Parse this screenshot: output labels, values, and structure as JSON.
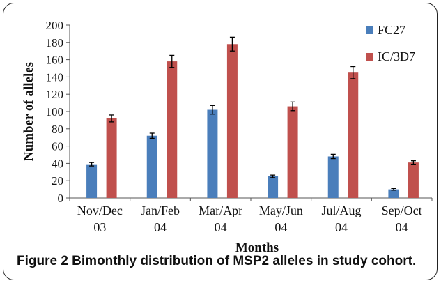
{
  "caption": "Figure 2 Bimonthly distribution of MSP2 alleles in study cohort.",
  "colors": {
    "FC27": "#4a7ebb",
    "IC/3D7": "#c0504d"
  },
  "chart_data": {
    "type": "bar",
    "categories": [
      [
        "Nov/Dec",
        "03"
      ],
      [
        "Jan/Feb",
        "04"
      ],
      [
        "Mar/Apr",
        "04"
      ],
      [
        "May/Jun",
        "04"
      ],
      [
        "Jul/Aug",
        "04"
      ],
      [
        "Sep/Oct",
        "04"
      ]
    ],
    "series": [
      {
        "name": "FC27",
        "values": [
          39,
          72,
          102,
          25,
          48,
          10
        ],
        "errors": [
          2,
          3,
          5,
          1.5,
          2.5,
          1
        ]
      },
      {
        "name": "IC/3D7",
        "values": [
          92,
          158,
          178,
          106,
          145,
          41
        ],
        "errors": [
          4,
          7,
          8,
          5,
          7,
          2
        ]
      }
    ],
    "xlabel": "Months",
    "ylabel": "Number of alleles",
    "ylim": [
      0,
      200
    ],
    "yticks": [
      0,
      20,
      40,
      60,
      80,
      100,
      120,
      140,
      160,
      180,
      200
    ],
    "legend_position": "top-right",
    "grid": false
  }
}
